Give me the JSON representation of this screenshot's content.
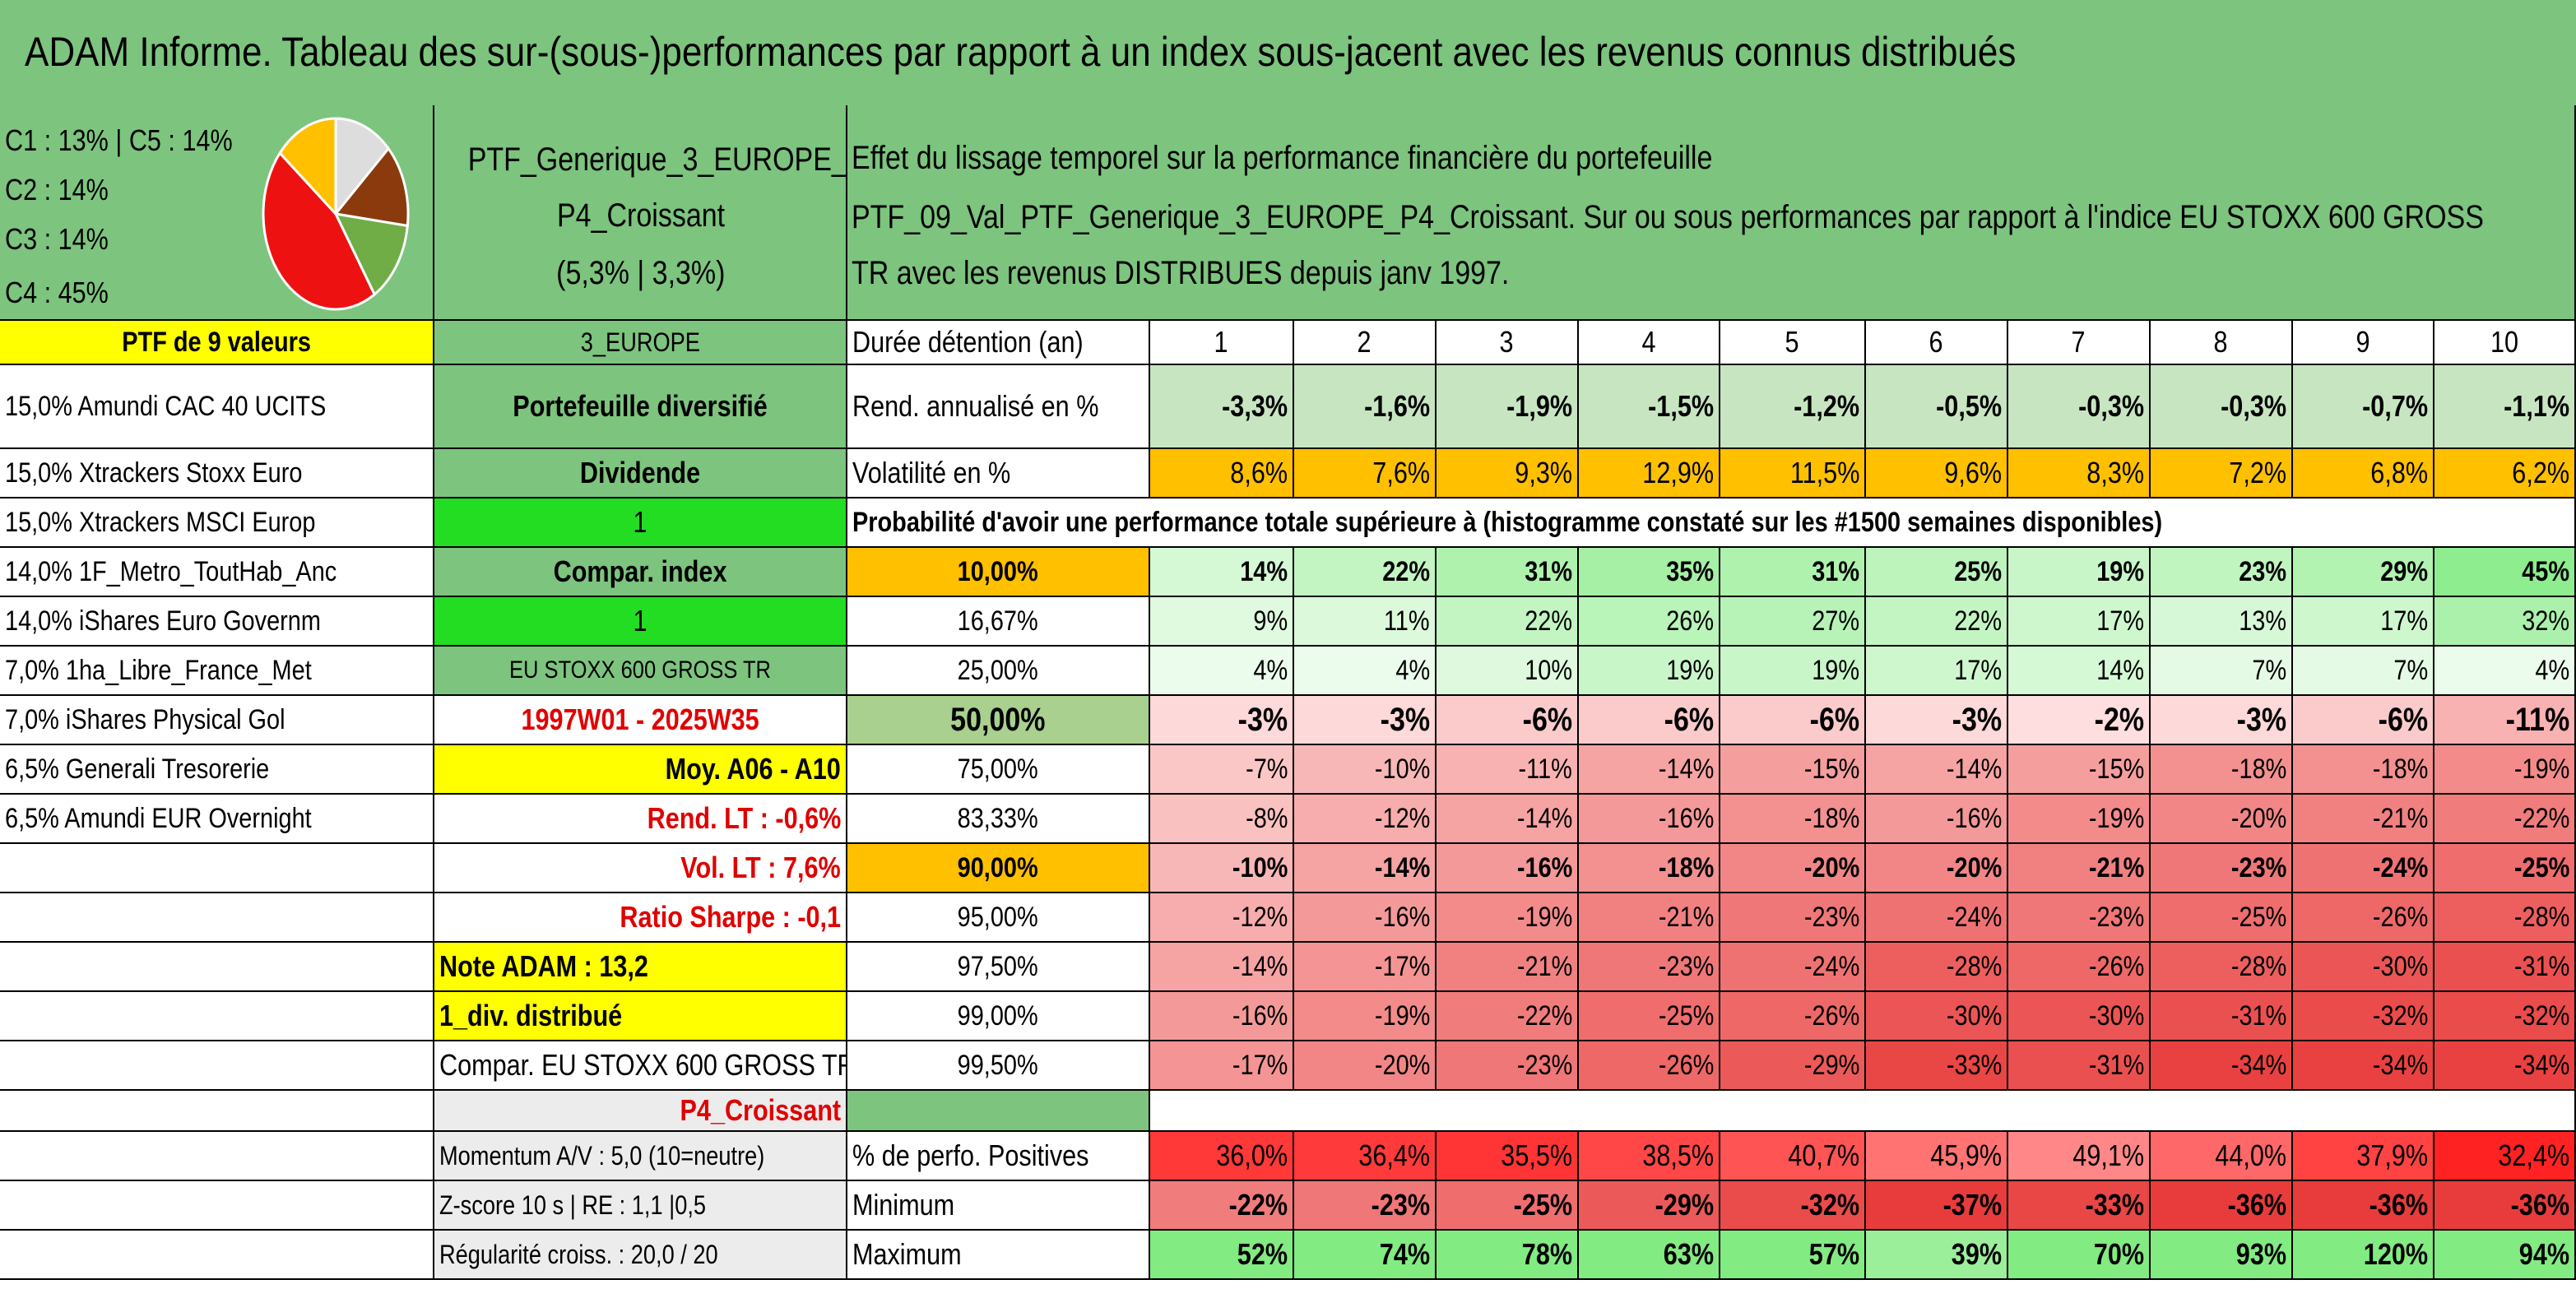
{
  "title": "ADAM Informe. Tableau des sur-(sous-)performances par rapport à un index sous-jacent avec les revenus connus distribués",
  "clusters": [
    "C1 : 13% | C5 : 14%",
    "C2 : 14%",
    "C3 : 14%",
    "C4 : 45%"
  ],
  "pie": {
    "type": "pie",
    "slices": [
      {
        "value": 13,
        "color": "#dddddd"
      },
      {
        "value": 14,
        "color": "#8b3a0e"
      },
      {
        "value": 14,
        "color": "#71ad47"
      },
      {
        "value": 45,
        "color": "#ee1111"
      },
      {
        "value": 14,
        "color": "#ffc000"
      }
    ]
  },
  "ptf_name": [
    "PTF_Generique_3_EUROPE_",
    "P4_Croissant",
    "(5,3% | 3,3%)"
  ],
  "description": [
    "Effet du lissage temporel sur la performance financière du portefeuille",
    "PTF_09_Val_PTF_Generique_3_EUROPE_P4_Croissant. Sur ou sous performances par rapport à l'indice EU STOXX 600 GROSS",
    "TR avec les revenus DISTRIBUES depuis janv 1997."
  ],
  "ptf_count": "PTF de 9 valeurs",
  "holdings": [
    "15,0% Amundi CAC 40 UCITS",
    "15,0% Xtrackers Stoxx Euro",
    "15,0% Xtrackers MSCI Europ",
    "14,0% 1F_Metro_ToutHab_Anc",
    "14,0% iShares Euro Governm",
    "7,0% 1ha_Libre_France_Met",
    "7,0% iShares Physical Gol",
    "6,5% Generali Tresorerie",
    "6,5% Amundi EUR Overnight"
  ],
  "info": {
    "region": "3_EUROPE",
    "type": "Portefeuille diversifié",
    "dividend_label": "Dividende",
    "dividend_value": "1",
    "compar_label": "Compar. index",
    "compar_value": "1",
    "index_name": "EU STOXX 600 GROSS TR",
    "period": "1997W01 - 2025W35",
    "avg": "Moy. A06 - A10",
    "rend_lt": "Rend. LT : -0,6%",
    "vol_lt": "Vol. LT : 7,6%",
    "sharpe": "Ratio Sharpe : -0,1",
    "note": "Note ADAM : 13,2",
    "div": "1_div. distribué",
    "compar_full": "Compar. EU STOXX 600 GROSS TR",
    "profile": "P4_Croissant",
    "momentum": "Momentum A/V : 5,0 (10=neutre)",
    "zscore": "Z-score 10 s | RE : 1,1 |0,5",
    "regularity": "Régularité croiss. : 20,0 / 20"
  },
  "durations_label": "Durée détention (an)",
  "durations": [
    "1",
    "2",
    "3",
    "4",
    "5",
    "6",
    "7",
    "8",
    "9",
    "10"
  ],
  "rend_label": "Rend. annualisé en %",
  "rend": [
    "-3,3%",
    "-1,6%",
    "-1,9%",
    "-1,5%",
    "-1,2%",
    "-0,5%",
    "-0,3%",
    "-0,3%",
    "-0,7%",
    "-1,1%"
  ],
  "vol_label": "Volatilité en %",
  "vol": [
    "8,6%",
    "7,6%",
    "9,3%",
    "12,9%",
    "11,5%",
    "9,6%",
    "8,3%",
    "7,2%",
    "6,8%",
    "6,2%"
  ],
  "prob_header": "Probabilité d'avoir une performance totale supérieure à (histogramme constaté sur les #1500 semaines disponibles)",
  "prob_rows": [
    {
      "label": "10,00%",
      "values": [
        "14%",
        "22%",
        "31%",
        "35%",
        "31%",
        "25%",
        "19%",
        "23%",
        "29%",
        "45%"
      ]
    },
    {
      "label": "16,67%",
      "values": [
        "9%",
        "11%",
        "22%",
        "26%",
        "27%",
        "22%",
        "17%",
        "13%",
        "17%",
        "32%"
      ]
    },
    {
      "label": "25,00%",
      "values": [
        "4%",
        "4%",
        "10%",
        "19%",
        "19%",
        "17%",
        "14%",
        "7%",
        "7%",
        "4%"
      ]
    },
    {
      "label": "50,00%",
      "values": [
        "-3%",
        "-3%",
        "-6%",
        "-6%",
        "-6%",
        "-3%",
        "-2%",
        "-3%",
        "-6%",
        "-11%"
      ]
    },
    {
      "label": "75,00%",
      "values": [
        "-7%",
        "-10%",
        "-11%",
        "-14%",
        "-15%",
        "-14%",
        "-15%",
        "-18%",
        "-18%",
        "-19%"
      ]
    },
    {
      "label": "83,33%",
      "values": [
        "-8%",
        "-12%",
        "-14%",
        "-16%",
        "-18%",
        "-16%",
        "-19%",
        "-20%",
        "-21%",
        "-22%"
      ]
    },
    {
      "label": "90,00%",
      "values": [
        "-10%",
        "-14%",
        "-16%",
        "-18%",
        "-20%",
        "-20%",
        "-21%",
        "-23%",
        "-24%",
        "-25%"
      ]
    },
    {
      "label": "95,00%",
      "values": [
        "-12%",
        "-16%",
        "-19%",
        "-21%",
        "-23%",
        "-24%",
        "-23%",
        "-25%",
        "-26%",
        "-28%"
      ]
    },
    {
      "label": "97,50%",
      "values": [
        "-14%",
        "-17%",
        "-21%",
        "-23%",
        "-24%",
        "-28%",
        "-26%",
        "-28%",
        "-30%",
        "-31%"
      ]
    },
    {
      "label": "99,00%",
      "values": [
        "-16%",
        "-19%",
        "-22%",
        "-25%",
        "-26%",
        "-30%",
        "-30%",
        "-31%",
        "-32%",
        "-32%"
      ]
    },
    {
      "label": "99,50%",
      "values": [
        "-17%",
        "-20%",
        "-23%",
        "-26%",
        "-29%",
        "-33%",
        "-31%",
        "-34%",
        "-34%",
        "-34%"
      ]
    }
  ],
  "pos_label": "% de perfo. Positives",
  "pos": [
    "36,0%",
    "36,4%",
    "35,5%",
    "38,5%",
    "40,7%",
    "45,9%",
    "49,1%",
    "44,0%",
    "37,9%",
    "32,4%"
  ],
  "min_label": "Minimum",
  "min": [
    "-22%",
    "-23%",
    "-25%",
    "-29%",
    "-32%",
    "-37%",
    "-33%",
    "-36%",
    "-36%",
    "-36%"
  ],
  "max_label": "Maximum",
  "max": [
    "52%",
    "74%",
    "78%",
    "63%",
    "57%",
    "39%",
    "70%",
    "93%",
    "120%",
    "94%"
  ],
  "colors": {
    "title_green": "#7dc47f",
    "yellow": "#ffff00",
    "bright_green": "#22dd22",
    "orange": "#ffc000",
    "red_text": "#e00000"
  }
}
